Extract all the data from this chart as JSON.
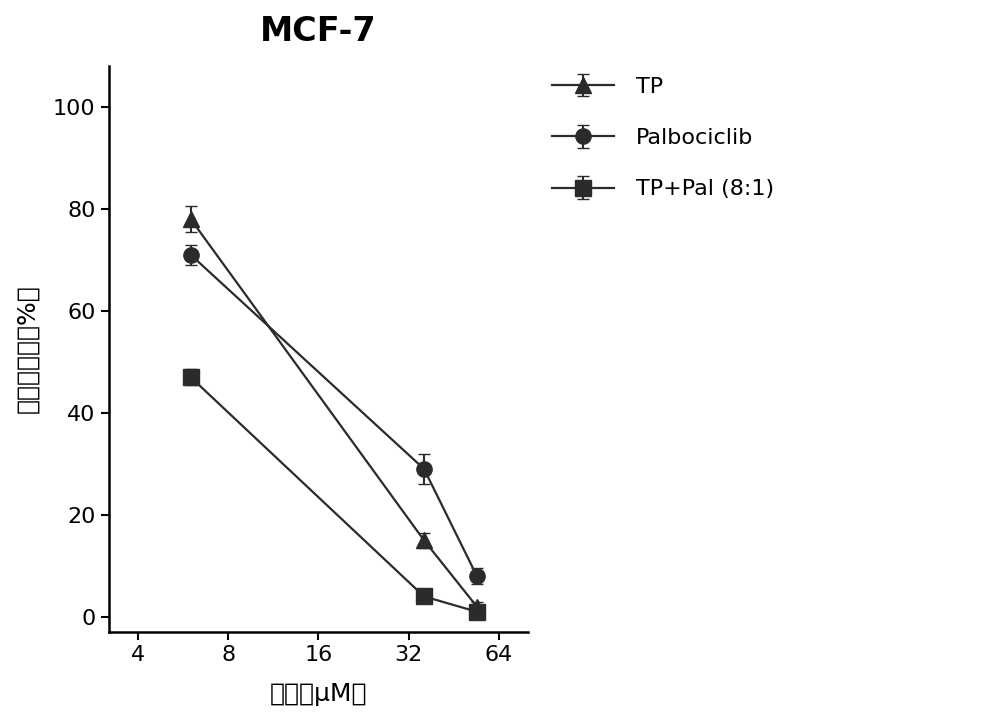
{
  "title": "MCF-7",
  "xlabel": "浓度（μM）",
  "ylabel": "细胞存活率（%）",
  "x_values": [
    6,
    36,
    54
  ],
  "series": [
    {
      "label": "TP",
      "marker": "^",
      "y": [
        78,
        15,
        2
      ],
      "yerr": [
        2.5,
        1.5,
        1.0
      ]
    },
    {
      "label": "Palbociclib",
      "marker": "o",
      "y": [
        71,
        29,
        8
      ],
      "yerr": [
        2.0,
        3.0,
        1.5
      ]
    },
    {
      "label": "TP+Pal (8:1)",
      "marker": "s",
      "y": [
        47,
        4,
        1
      ],
      "yerr": [
        1.5,
        0.8,
        0.5
      ]
    }
  ],
  "x_tick_values": [
    4,
    8,
    16,
    32,
    64
  ],
  "x_tick_labels": [
    "4",
    "8",
    "16",
    "32",
    "64"
  ],
  "ylim": [
    -3,
    108
  ],
  "xlim": [
    3.2,
    80
  ],
  "color": "#2b2b2b",
  "title_fontsize": 24,
  "label_fontsize": 18,
  "tick_fontsize": 16,
  "legend_fontsize": 16,
  "markersize": 11,
  "linewidth": 1.6,
  "capsize": 4,
  "elinewidth": 1.5
}
